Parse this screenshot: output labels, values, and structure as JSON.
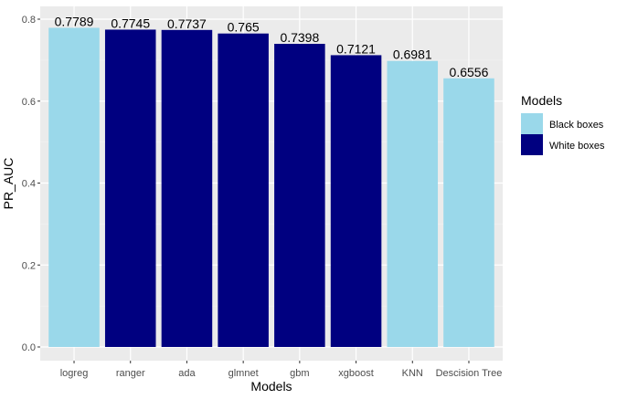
{
  "chart_data": {
    "type": "bar",
    "categories": [
      "logreg",
      "ranger",
      "ada",
      "glmnet",
      "gbm",
      "xgboost",
      "KNN",
      "Descision Tree"
    ],
    "values": [
      0.7789,
      0.7745,
      0.7737,
      0.765,
      0.7398,
      0.7121,
      0.6981,
      0.6556
    ],
    "value_labels": [
      "0.7789",
      "0.7745",
      "0.7737",
      "0.765",
      "0.7398",
      "0.7121",
      "0.6981",
      "0.6556"
    ],
    "groups": [
      "Black boxes",
      "White boxes",
      "White boxes",
      "White boxes",
      "White boxes",
      "White boxes",
      "Black boxes",
      "Black boxes"
    ],
    "xlabel": "Models",
    "ylabel": "PR_AUC",
    "ylim": [
      0,
      0.82
    ],
    "yticks": [
      0.0,
      0.2,
      0.4,
      0.6,
      0.8
    ],
    "ytick_labels": [
      "0.0",
      "0.2",
      "0.4",
      "0.6",
      "0.8"
    ],
    "grid": true,
    "panel_background": "#ebebeb",
    "legend": {
      "title": "Models",
      "placement": "right",
      "entries": [
        {
          "label": "Black boxes",
          "color": "#9ad8ea"
        },
        {
          "label": "White boxes",
          "color": "#000080"
        }
      ]
    }
  }
}
